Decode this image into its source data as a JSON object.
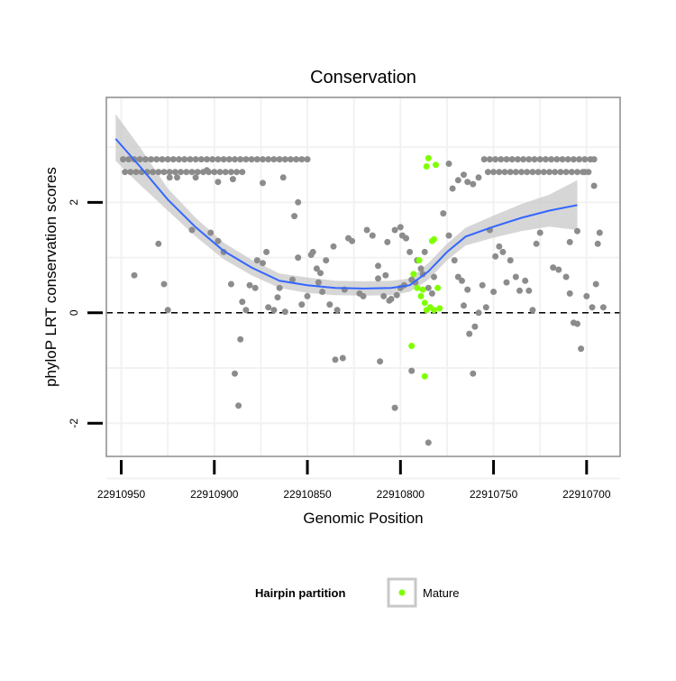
{
  "chart_data": {
    "type": "scatter",
    "title": "Conservation",
    "xlabel": "Genomic Position",
    "ylabel": "phyloP LRT conservation scores",
    "x_reversed": true,
    "xlim": [
      22910958,
      22910682
    ],
    "ylim": [
      -2.6,
      3.9
    ],
    "x_ticks": [
      22910950,
      22910900,
      22910850,
      22910800,
      22910750,
      22910700
    ],
    "x_tick_labels": [
      "22910950",
      "22910900",
      "22910850",
      "22910800",
      "22910750",
      "22910700"
    ],
    "y_ticks": [
      -2,
      0,
      2
    ],
    "y_tick_labels": [
      "-2",
      "0",
      "2"
    ],
    "reference_line": {
      "y": 0,
      "style": "dashed"
    },
    "colors": {
      "background": "#ffffff",
      "panel_border": "#8c8c8c",
      "grid": "#f2f2f2",
      "point": "#8c8c8c",
      "mature": "#7fff00",
      "smooth": "#3366ff",
      "ribbon": "#c8c8c8"
    },
    "legend": {
      "title": "Hairpin partition",
      "entries": [
        {
          "label": "Mature",
          "color": "#7fff00"
        }
      ],
      "position": "bottom"
    },
    "series": [
      {
        "name": "Other",
        "color": "#8c8c8c",
        "points": [
          [
            22910949,
            2.78
          ],
          [
            22910946,
            2.78
          ],
          [
            22910943,
            2.78
          ],
          [
            22910940,
            2.78
          ],
          [
            22910937,
            2.78
          ],
          [
            22910934,
            2.78
          ],
          [
            22910931,
            2.78
          ],
          [
            22910928,
            2.78
          ],
          [
            22910925,
            2.78
          ],
          [
            22910922,
            2.78
          ],
          [
            22910919,
            2.78
          ],
          [
            22910916,
            2.78
          ],
          [
            22910913,
            2.78
          ],
          [
            22910910,
            2.78
          ],
          [
            22910907,
            2.78
          ],
          [
            22910904,
            2.78
          ],
          [
            22910901,
            2.78
          ],
          [
            22910898,
            2.78
          ],
          [
            22910895,
            2.78
          ],
          [
            22910892,
            2.78
          ],
          [
            22910889,
            2.78
          ],
          [
            22910886,
            2.78
          ],
          [
            22910883,
            2.78
          ],
          [
            22910880,
            2.78
          ],
          [
            22910877,
            2.78
          ],
          [
            22910874,
            2.78
          ],
          [
            22910871,
            2.78
          ],
          [
            22910868,
            2.78
          ],
          [
            22910865,
            2.78
          ],
          [
            22910862,
            2.78
          ],
          [
            22910859,
            2.78
          ],
          [
            22910856,
            2.78
          ],
          [
            22910853,
            2.78
          ],
          [
            22910850,
            2.78
          ],
          [
            22910948,
            2.55
          ],
          [
            22910945,
            2.55
          ],
          [
            22910942,
            2.55
          ],
          [
            22910939,
            2.55
          ],
          [
            22910936,
            2.55
          ],
          [
            22910933,
            2.55
          ],
          [
            22910930,
            2.55
          ],
          [
            22910927,
            2.55
          ],
          [
            22910924,
            2.55
          ],
          [
            22910921,
            2.55
          ],
          [
            22910918,
            2.55
          ],
          [
            22910915,
            2.55
          ],
          [
            22910912,
            2.55
          ],
          [
            22910909,
            2.55
          ],
          [
            22910906,
            2.55
          ],
          [
            22910903,
            2.55
          ],
          [
            22910900,
            2.55
          ],
          [
            22910897,
            2.55
          ],
          [
            22910894,
            2.55
          ],
          [
            22910891,
            2.55
          ],
          [
            22910888,
            2.55
          ],
          [
            22910885,
            2.55
          ],
          [
            22910755,
            2.78
          ],
          [
            22910752,
            2.78
          ],
          [
            22910749,
            2.78
          ],
          [
            22910746,
            2.78
          ],
          [
            22910743,
            2.78
          ],
          [
            22910740,
            2.78
          ],
          [
            22910737,
            2.78
          ],
          [
            22910734,
            2.78
          ],
          [
            22910731,
            2.78
          ],
          [
            22910728,
            2.78
          ],
          [
            22910725,
            2.78
          ],
          [
            22910722,
            2.78
          ],
          [
            22910719,
            2.78
          ],
          [
            22910716,
            2.78
          ],
          [
            22910713,
            2.78
          ],
          [
            22910710,
            2.78
          ],
          [
            22910707,
            2.78
          ],
          [
            22910704,
            2.78
          ],
          [
            22910701,
            2.78
          ],
          [
            22910698,
            2.78
          ],
          [
            22910696,
            2.78
          ],
          [
            22910753,
            2.55
          ],
          [
            22910750,
            2.55
          ],
          [
            22910747,
            2.55
          ],
          [
            22910744,
            2.55
          ],
          [
            22910741,
            2.55
          ],
          [
            22910738,
            2.55
          ],
          [
            22910735,
            2.55
          ],
          [
            22910732,
            2.55
          ],
          [
            22910729,
            2.55
          ],
          [
            22910726,
            2.55
          ],
          [
            22910723,
            2.55
          ],
          [
            22910720,
            2.55
          ],
          [
            22910717,
            2.55
          ],
          [
            22910714,
            2.55
          ],
          [
            22910711,
            2.55
          ],
          [
            22910708,
            2.55
          ],
          [
            22910705,
            2.55
          ],
          [
            22910702,
            2.55
          ],
          [
            22910699,
            2.55
          ],
          [
            22910924,
            2.45
          ],
          [
            22910920,
            2.45
          ],
          [
            22910910,
            2.45
          ],
          [
            22910904,
            2.58
          ],
          [
            22910898,
            2.37
          ],
          [
            22910890,
            2.42
          ],
          [
            22910874,
            2.35
          ],
          [
            22910863,
            2.45
          ],
          [
            22910857,
            1.75
          ],
          [
            22910855,
            2.0
          ],
          [
            22910943,
            0.68
          ],
          [
            22910930,
            1.25
          ],
          [
            22910927,
            0.52
          ],
          [
            22910925,
            0.05
          ],
          [
            22910912,
            1.5
          ],
          [
            22910902,
            1.45
          ],
          [
            22910898,
            1.3
          ],
          [
            22910895,
            1.1
          ],
          [
            22910891,
            0.52
          ],
          [
            22910889,
            -1.1
          ],
          [
            22910887,
            -1.68
          ],
          [
            22910886,
            -0.48
          ],
          [
            22910885,
            0.2
          ],
          [
            22910883,
            0.05
          ],
          [
            22910881,
            0.5
          ],
          [
            22910878,
            0.45
          ],
          [
            22910877,
            0.95
          ],
          [
            22910874,
            0.9
          ],
          [
            22910872,
            1.1
          ],
          [
            22910871,
            0.1
          ],
          [
            22910868,
            0.05
          ],
          [
            22910866,
            0.28
          ],
          [
            22910865,
            0.45
          ],
          [
            22910862,
            0.02
          ],
          [
            22910858,
            0.6
          ],
          [
            22910855,
            1.0
          ],
          [
            22910853,
            0.15
          ],
          [
            22910850,
            0.3
          ],
          [
            22910848,
            1.05
          ],
          [
            22910847,
            1.1
          ],
          [
            22910845,
            0.8
          ],
          [
            22910844,
            0.55
          ],
          [
            22910843,
            0.72
          ],
          [
            22910842,
            0.38
          ],
          [
            22910840,
            0.95
          ],
          [
            22910838,
            0.15
          ],
          [
            22910836,
            1.2
          ],
          [
            22910835,
            -0.85
          ],
          [
            22910834,
            0.05
          ],
          [
            22910831,
            -0.82
          ],
          [
            22910830,
            0.42
          ],
          [
            22910828,
            1.35
          ],
          [
            22910826,
            1.3
          ],
          [
            22910822,
            0.35
          ],
          [
            22910820,
            0.3
          ],
          [
            22910818,
            1.5
          ],
          [
            22910815,
            1.4
          ],
          [
            22910812,
            0.85
          ],
          [
            22910811,
            -0.88
          ],
          [
            22910809,
            0.3
          ],
          [
            22910807,
            1.28
          ],
          [
            22910806,
            0.22
          ],
          [
            22910805,
            0.25
          ],
          [
            22910803,
            -1.72
          ],
          [
            22910800,
            1.55
          ],
          [
            22910798,
            0.5
          ],
          [
            22910797,
            1.35
          ],
          [
            22910794,
            -1.05
          ],
          [
            22910792,
            0.55
          ],
          [
            22910789,
            0.8
          ],
          [
            22910787,
            1.1
          ],
          [
            22910785,
            -2.35
          ],
          [
            22910783,
            0.35
          ],
          [
            22910782,
            0.65
          ],
          [
            22910803,
            1.5
          ],
          [
            22910799,
            1.4
          ],
          [
            22910795,
            1.1
          ],
          [
            22910791,
            0.95
          ],
          [
            22910788,
            0.7
          ],
          [
            22910785,
            0.45
          ],
          [
            22910802,
            0.32
          ],
          [
            22910800,
            0.45
          ],
          [
            22910794,
            0.6
          ],
          [
            22910808,
            0.68
          ],
          [
            22910812,
            0.62
          ],
          [
            22910774,
            2.7
          ],
          [
            22910772,
            2.25
          ],
          [
            22910769,
            2.4
          ],
          [
            22910766,
            2.5
          ],
          [
            22910764,
            2.37
          ],
          [
            22910761,
            2.33
          ],
          [
            22910758,
            2.45
          ],
          [
            22910777,
            1.8
          ],
          [
            22910774,
            1.4
          ],
          [
            22910771,
            0.95
          ],
          [
            22910769,
            0.65
          ],
          [
            22910767,
            0.58
          ],
          [
            22910766,
            0.13
          ],
          [
            22910764,
            0.42
          ],
          [
            22910763,
            -0.38
          ],
          [
            22910761,
            -1.1
          ],
          [
            22910760,
            -0.25
          ],
          [
            22910758,
            0.0
          ],
          [
            22910756,
            0.5
          ],
          [
            22910754,
            0.1
          ],
          [
            22910752,
            1.5
          ],
          [
            22910750,
            0.38
          ],
          [
            22910749,
            1.02
          ],
          [
            22910747,
            1.2
          ],
          [
            22910745,
            1.1
          ],
          [
            22910743,
            0.55
          ],
          [
            22910741,
            0.95
          ],
          [
            22910738,
            0.65
          ],
          [
            22910736,
            0.4
          ],
          [
            22910733,
            0.58
          ],
          [
            22910731,
            0.4
          ],
          [
            22910729,
            0.05
          ],
          [
            22910727,
            1.25
          ],
          [
            22910725,
            1.45
          ],
          [
            22910718,
            0.82
          ],
          [
            22910715,
            0.78
          ],
          [
            22910709,
            1.28
          ],
          [
            22910705,
            1.48
          ],
          [
            22910711,
            0.65
          ],
          [
            22910709,
            0.35
          ],
          [
            22910707,
            -0.18
          ],
          [
            22910705,
            -0.2
          ],
          [
            22910703,
            -0.65
          ],
          [
            22910701,
            2.55
          ],
          [
            22910700,
            0.3
          ],
          [
            22910697,
            0.1
          ],
          [
            22910694,
            1.25
          ],
          [
            22910693,
            1.45
          ],
          [
            22910691,
            0.1
          ],
          [
            22910696,
            2.3
          ],
          [
            22910695,
            0.52
          ]
        ]
      },
      {
        "name": "Mature",
        "color": "#7fff00",
        "points": [
          [
            22910785,
            2.8
          ],
          [
            22910786,
            2.65
          ],
          [
            22910781,
            2.68
          ],
          [
            22910790,
            0.95
          ],
          [
            22910793,
            0.7
          ],
          [
            22910791,
            0.45
          ],
          [
            22910788,
            0.42
          ],
          [
            22910782,
            1.33
          ],
          [
            22910783,
            1.3
          ],
          [
            22910780,
            0.45
          ],
          [
            22910787,
            0.18
          ],
          [
            22910786,
            0.05
          ],
          [
            22910784,
            0.1
          ],
          [
            22910782,
            0.05
          ],
          [
            22910779,
            0.08
          ],
          [
            22910794,
            -0.6
          ],
          [
            22910787,
            -1.15
          ],
          [
            22910789,
            0.3
          ]
        ]
      }
    ],
    "smooth": {
      "method": "loess",
      "color": "#3366ff",
      "x": [
        22910953,
        22910940,
        22910925,
        22910910,
        22910895,
        22910880,
        22910865,
        22910850,
        22910835,
        22910820,
        22910805,
        22910795,
        22910785,
        22910775,
        22910765,
        22910750,
        22910735,
        22910720,
        22910705
      ],
      "y": [
        3.15,
        2.65,
        2.05,
        1.55,
        1.12,
        0.82,
        0.58,
        0.5,
        0.45,
        0.44,
        0.45,
        0.5,
        0.75,
        1.1,
        1.38,
        1.56,
        1.72,
        1.85,
        1.95
      ],
      "lo": [
        2.75,
        2.32,
        1.85,
        1.38,
        0.97,
        0.68,
        0.45,
        0.36,
        0.32,
        0.31,
        0.32,
        0.38,
        0.6,
        0.95,
        1.22,
        1.36,
        1.48,
        1.56,
        1.5
      ],
      "hi": [
        3.6,
        3.0,
        2.25,
        1.72,
        1.27,
        0.96,
        0.71,
        0.64,
        0.58,
        0.57,
        0.58,
        0.62,
        0.9,
        1.25,
        1.54,
        1.76,
        1.97,
        2.14,
        2.4
      ]
    }
  }
}
